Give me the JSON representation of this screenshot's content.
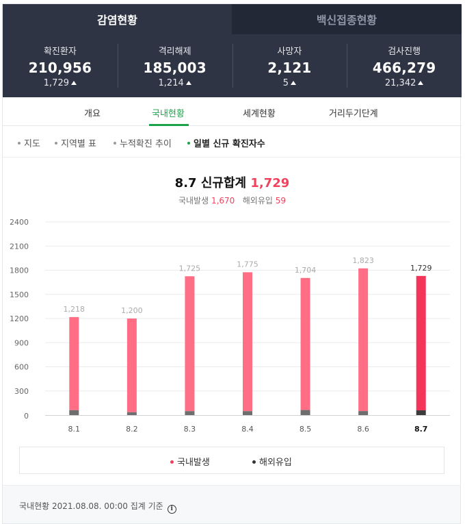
{
  "top_tabs": [
    {
      "label": "감염현황",
      "active": true
    },
    {
      "label": "백신접종현황",
      "active": false
    }
  ],
  "stats": [
    {
      "label": "확진환자",
      "value": "210,956",
      "delta": "1,729"
    },
    {
      "label": "격리해제",
      "value": "185,003",
      "delta": "1,214"
    },
    {
      "label": "사망자",
      "value": "2,121",
      "delta": "5"
    },
    {
      "label": "검사진행",
      "value": "466,279",
      "delta": "21,342"
    }
  ],
  "nav": [
    "개요",
    "국내현황",
    "세계현황",
    "거리두기단계"
  ],
  "subnav": [
    "지도",
    "지역별 표",
    "누적확진 추이",
    "일별 신규 확진자수"
  ],
  "chart_header": {
    "date": "8.7",
    "title_text": "신규합계",
    "total": "1,729",
    "domestic_label": "국내발생",
    "domestic_value": "1,670",
    "overseas_label": "해외유입",
    "overseas_value": "59"
  },
  "chart_data": {
    "type": "bar",
    "categories": [
      "8.1",
      "8.2",
      "8.3",
      "8.4",
      "8.5",
      "8.6",
      "8.7"
    ],
    "series": [
      {
        "name": "국내발생",
        "values": [
          1157,
          1164,
          1676,
          1726,
          1641,
          1773,
          1670
        ]
      },
      {
        "name": "해외유입",
        "values": [
          61,
          36,
          49,
          49,
          63,
          50,
          59
        ]
      }
    ],
    "totals": [
      1218,
      1200,
      1725,
      1775,
      1704,
      1823,
      1729
    ],
    "total_labels": [
      "1,218",
      "1,200",
      "1,725",
      "1,775",
      "1,704",
      "1,823",
      "1,729"
    ],
    "stacked": true,
    "yticks": [
      0,
      300,
      600,
      900,
      1200,
      1500,
      1800,
      2100,
      2400
    ],
    "ylim": [
      0,
      2400
    ],
    "grid": true,
    "highlight_index": 6,
    "colors": {
      "domestic": "#ff6e84",
      "domestic_highlight": "#f5345a",
      "overseas": "#6e6e6e",
      "overseas_highlight": "#3b3b3b"
    },
    "legend_position": "bottom"
  },
  "legend": [
    {
      "label": "국내발생",
      "color": "#f0425d"
    },
    {
      "label": "해외유입",
      "color": "#333333"
    }
  ],
  "footer": {
    "text": "국내현황 2021.08.08. 00:00 집계 기준",
    "icon": "info-icon"
  }
}
